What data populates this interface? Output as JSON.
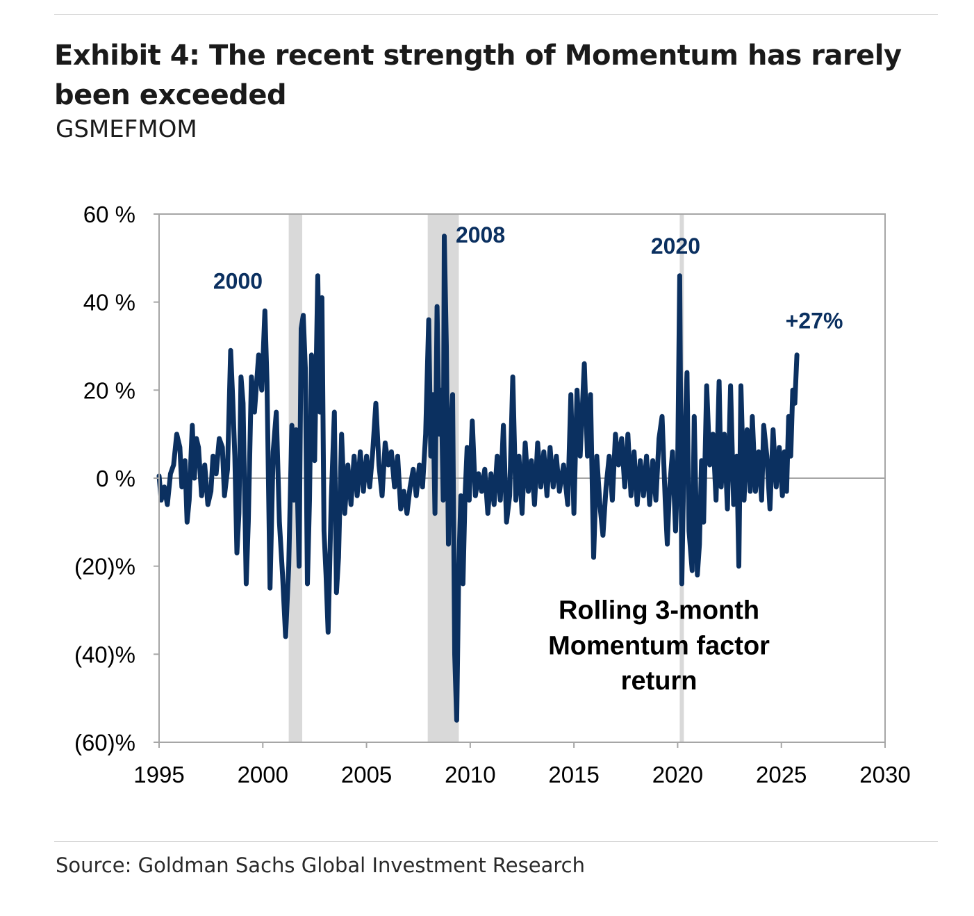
{
  "header": {
    "title": "Exhibit 4: The recent strength of Momentum has rarely been exceeded",
    "subtitle": "GSMEFMOM"
  },
  "footer": {
    "source": "Source: Goldman Sachs Global Investment Research"
  },
  "chart_data": {
    "type": "line",
    "title": "",
    "xlabel": "",
    "ylabel": "",
    "xlim": [
      1995,
      2030
    ],
    "ylim": [
      -60,
      60
    ],
    "grid": false,
    "legend": "none",
    "x_ticks": [
      {
        "value": 1995,
        "label": "1995"
      },
      {
        "value": 2000,
        "label": "2000"
      },
      {
        "value": 2005,
        "label": "2005"
      },
      {
        "value": 2010,
        "label": "2010"
      },
      {
        "value": 2015,
        "label": "2015"
      },
      {
        "value": 2020,
        "label": "2020"
      },
      {
        "value": 2025,
        "label": "2025"
      },
      {
        "value": 2030,
        "label": "2030"
      }
    ],
    "y_ticks": [
      {
        "value": 60,
        "label": "60 %"
      },
      {
        "value": 40,
        "label": "40 %"
      },
      {
        "value": 20,
        "label": "20 %"
      },
      {
        "value": 0,
        "label": "0 %"
      },
      {
        "value": -20,
        "label": "(20)%"
      },
      {
        "value": -40,
        "label": "(40)%"
      },
      {
        "value": -60,
        "label": "(60)%"
      }
    ],
    "colors": {
      "line": "#0b3060",
      "recession": "#d9d9d9",
      "axis": "#a6a6a6"
    },
    "recessions": [
      {
        "start": 2001.25,
        "end": 2001.9
      },
      {
        "start": 2007.95,
        "end": 2009.45
      },
      {
        "start": 2020.1,
        "end": 2020.3
      }
    ],
    "annotations": [
      {
        "name": "annotation-2000",
        "text": "2000",
        "x": 1998.8,
        "y": 43.0,
        "style": "ann",
        "anchor": "middle"
      },
      {
        "name": "annotation-2008",
        "text": "2008",
        "x": 2009.3,
        "y": 53.5,
        "style": "ann",
        "anchor": "start"
      },
      {
        "name": "annotation-2020",
        "text": "2020",
        "x": 2019.9,
        "y": 51.0,
        "style": "ann",
        "anchor": "middle"
      },
      {
        "name": "annotation-plus27",
        "text": "+27%",
        "x": 2025.2,
        "y": 34.0,
        "style": "ann",
        "anchor": "start"
      },
      {
        "name": "annotation-rolling-line1",
        "text": "Rolling 3-month",
        "x": 2019.1,
        "y": -32.0,
        "style": "note",
        "anchor": "middle"
      },
      {
        "name": "annotation-rolling-line2",
        "text": "Momentum factor",
        "x": 2019.1,
        "y": -40.0,
        "style": "note",
        "anchor": "middle"
      },
      {
        "name": "annotation-rolling-line3",
        "text": "return",
        "x": 2019.1,
        "y": -48.0,
        "style": "note",
        "anchor": "middle"
      }
    ],
    "series": [
      {
        "points": [
          [
            1995.0,
            0.5
          ],
          [
            1995.1,
            -5
          ],
          [
            1995.25,
            -2
          ],
          [
            1995.4,
            -6
          ],
          [
            1995.55,
            1
          ],
          [
            1995.7,
            3
          ],
          [
            1995.85,
            10
          ],
          [
            1996.0,
            7
          ],
          [
            1996.1,
            -2
          ],
          [
            1996.25,
            4
          ],
          [
            1996.35,
            -10
          ],
          [
            1996.45,
            -5
          ],
          [
            1996.6,
            12
          ],
          [
            1996.7,
            0
          ],
          [
            1996.8,
            9
          ],
          [
            1996.9,
            7
          ],
          [
            1997.05,
            -4
          ],
          [
            1997.2,
            3
          ],
          [
            1997.35,
            -6
          ],
          [
            1997.5,
            -3
          ],
          [
            1997.6,
            5
          ],
          [
            1997.75,
            1
          ],
          [
            1997.9,
            9
          ],
          [
            1998.05,
            7
          ],
          [
            1998.15,
            -4
          ],
          [
            1998.3,
            2
          ],
          [
            1998.45,
            29
          ],
          [
            1998.55,
            18
          ],
          [
            1998.65,
            5
          ],
          [
            1998.75,
            -17
          ],
          [
            1998.85,
            -8
          ],
          [
            1998.95,
            23
          ],
          [
            1999.05,
            17
          ],
          [
            1999.2,
            -24
          ],
          [
            1999.3,
            -10
          ],
          [
            1999.45,
            23
          ],
          [
            1999.6,
            15
          ],
          [
            1999.8,
            28
          ],
          [
            1999.95,
            20
          ],
          [
            2000.1,
            38
          ],
          [
            2000.2,
            22
          ],
          [
            2000.35,
            -25
          ],
          [
            2000.5,
            6
          ],
          [
            2000.65,
            15
          ],
          [
            2000.8,
            -10
          ],
          [
            2000.95,
            -22
          ],
          [
            2001.1,
            -36
          ],
          [
            2001.25,
            -20
          ],
          [
            2001.4,
            12
          ],
          [
            2001.5,
            -5
          ],
          [
            2001.6,
            11
          ],
          [
            2001.75,
            -20
          ],
          [
            2001.85,
            34
          ],
          [
            2001.95,
            37
          ],
          [
            2002.05,
            25
          ],
          [
            2002.15,
            -24
          ],
          [
            2002.25,
            -5
          ],
          [
            2002.35,
            28
          ],
          [
            2002.5,
            4
          ],
          [
            2002.65,
            46
          ],
          [
            2002.75,
            15
          ],
          [
            2002.85,
            41
          ],
          [
            2002.95,
            -12
          ],
          [
            2003.05,
            -22
          ],
          [
            2003.15,
            -35
          ],
          [
            2003.3,
            -5
          ],
          [
            2003.45,
            15
          ],
          [
            2003.55,
            -26
          ],
          [
            2003.65,
            -18
          ],
          [
            2003.8,
            10
          ],
          [
            2003.95,
            -8
          ],
          [
            2004.1,
            3
          ],
          [
            2004.25,
            -6
          ],
          [
            2004.4,
            5
          ],
          [
            2004.55,
            -4
          ],
          [
            2004.7,
            6
          ],
          [
            2004.85,
            -3
          ],
          [
            2005.0,
            5
          ],
          [
            2005.15,
            -2
          ],
          [
            2005.3,
            6
          ],
          [
            2005.45,
            17
          ],
          [
            2005.6,
            3
          ],
          [
            2005.75,
            -4
          ],
          [
            2005.9,
            8
          ],
          [
            2006.05,
            3
          ],
          [
            2006.2,
            6
          ],
          [
            2006.35,
            -2
          ],
          [
            2006.5,
            5
          ],
          [
            2006.65,
            -7
          ],
          [
            2006.8,
            -3
          ],
          [
            2006.95,
            -8
          ],
          [
            2007.1,
            -2
          ],
          [
            2007.25,
            2
          ],
          [
            2007.4,
            -4
          ],
          [
            2007.55,
            3
          ],
          [
            2007.7,
            -2
          ],
          [
            2007.85,
            10
          ],
          [
            2008.0,
            36
          ],
          [
            2008.1,
            5
          ],
          [
            2008.2,
            19
          ],
          [
            2008.3,
            -8
          ],
          [
            2008.4,
            39
          ],
          [
            2008.5,
            10
          ],
          [
            2008.6,
            20
          ],
          [
            2008.7,
            -5
          ],
          [
            2008.75,
            55
          ],
          [
            2008.85,
            30
          ],
          [
            2008.95,
            -15
          ],
          [
            2009.05,
            10
          ],
          [
            2009.15,
            19
          ],
          [
            2009.25,
            -40
          ],
          [
            2009.35,
            -55
          ],
          [
            2009.45,
            -20
          ],
          [
            2009.55,
            -4
          ],
          [
            2009.65,
            -24
          ],
          [
            2009.75,
            -4
          ],
          [
            2009.85,
            7
          ],
          [
            2009.95,
            -5
          ],
          [
            2010.1,
            13
          ],
          [
            2010.25,
            -4
          ],
          [
            2010.4,
            1
          ],
          [
            2010.55,
            -3
          ],
          [
            2010.7,
            2
          ],
          [
            2010.85,
            -8
          ],
          [
            2011.0,
            1
          ],
          [
            2011.15,
            -6
          ],
          [
            2011.3,
            5
          ],
          [
            2011.45,
            -5
          ],
          [
            2011.6,
            12
          ],
          [
            2011.75,
            -10
          ],
          [
            2011.9,
            -4
          ],
          [
            2012.05,
            23
          ],
          [
            2012.2,
            -5
          ],
          [
            2012.35,
            5
          ],
          [
            2012.5,
            -8
          ],
          [
            2012.65,
            8
          ],
          [
            2012.8,
            -3
          ],
          [
            2012.95,
            4
          ],
          [
            2013.1,
            -6
          ],
          [
            2013.25,
            8
          ],
          [
            2013.4,
            -2
          ],
          [
            2013.55,
            6
          ],
          [
            2013.7,
            -4
          ],
          [
            2013.85,
            7
          ],
          [
            2014.0,
            -2
          ],
          [
            2014.15,
            5
          ],
          [
            2014.3,
            -3
          ],
          [
            2014.5,
            3
          ],
          [
            2014.7,
            -6
          ],
          [
            2014.85,
            19
          ],
          [
            2015.0,
            -8
          ],
          [
            2015.15,
            20
          ],
          [
            2015.3,
            5
          ],
          [
            2015.5,
            26
          ],
          [
            2015.65,
            5
          ],
          [
            2015.8,
            19
          ],
          [
            2015.95,
            -18
          ],
          [
            2016.1,
            5
          ],
          [
            2016.25,
            -6
          ],
          [
            2016.4,
            -13
          ],
          [
            2016.55,
            -2
          ],
          [
            2016.7,
            5
          ],
          [
            2016.85,
            -5
          ],
          [
            2017.0,
            10
          ],
          [
            2017.15,
            3
          ],
          [
            2017.3,
            9
          ],
          [
            2017.45,
            -2
          ],
          [
            2017.6,
            10
          ],
          [
            2017.75,
            -4
          ],
          [
            2017.9,
            6
          ],
          [
            2018.05,
            -6
          ],
          [
            2018.2,
            4
          ],
          [
            2018.35,
            -4
          ],
          [
            2018.5,
            5
          ],
          [
            2018.65,
            -6
          ],
          [
            2018.8,
            4
          ],
          [
            2018.95,
            -5
          ],
          [
            2019.1,
            9
          ],
          [
            2019.25,
            14
          ],
          [
            2019.4,
            -5
          ],
          [
            2019.5,
            -15
          ],
          [
            2019.6,
            -3
          ],
          [
            2019.75,
            6
          ],
          [
            2019.9,
            -12
          ],
          [
            2020.0,
            2
          ],
          [
            2020.1,
            46
          ],
          [
            2020.2,
            -24
          ],
          [
            2020.3,
            3
          ],
          [
            2020.45,
            24
          ],
          [
            2020.55,
            -12
          ],
          [
            2020.7,
            -21
          ],
          [
            2020.8,
            14
          ],
          [
            2020.95,
            -22
          ],
          [
            2021.05,
            -15
          ],
          [
            2021.15,
            4
          ],
          [
            2021.25,
            -10
          ],
          [
            2021.4,
            21
          ],
          [
            2021.55,
            3
          ],
          [
            2021.7,
            10
          ],
          [
            2021.85,
            -5
          ],
          [
            2022.0,
            22
          ],
          [
            2022.1,
            -2
          ],
          [
            2022.25,
            10
          ],
          [
            2022.4,
            -7
          ],
          [
            2022.55,
            21
          ],
          [
            2022.7,
            -6
          ],
          [
            2022.85,
            5
          ],
          [
            2022.95,
            -20
          ],
          [
            2023.05,
            21
          ],
          [
            2023.2,
            -5
          ],
          [
            2023.35,
            11
          ],
          [
            2023.5,
            -3
          ],
          [
            2023.6,
            14
          ],
          [
            2023.75,
            -3
          ],
          [
            2023.9,
            6
          ],
          [
            2024.05,
            -5
          ],
          [
            2024.15,
            12
          ],
          [
            2024.3,
            5
          ],
          [
            2024.45,
            -7
          ],
          [
            2024.6,
            11
          ],
          [
            2024.75,
            -2
          ],
          [
            2024.9,
            7
          ],
          [
            2025.05,
            -4
          ],
          [
            2025.15,
            6
          ],
          [
            2025.25,
            -3
          ],
          [
            2025.35,
            14
          ],
          [
            2025.45,
            5
          ],
          [
            2025.55,
            20
          ],
          [
            2025.65,
            17
          ],
          [
            2025.75,
            28
          ]
        ]
      }
    ]
  }
}
